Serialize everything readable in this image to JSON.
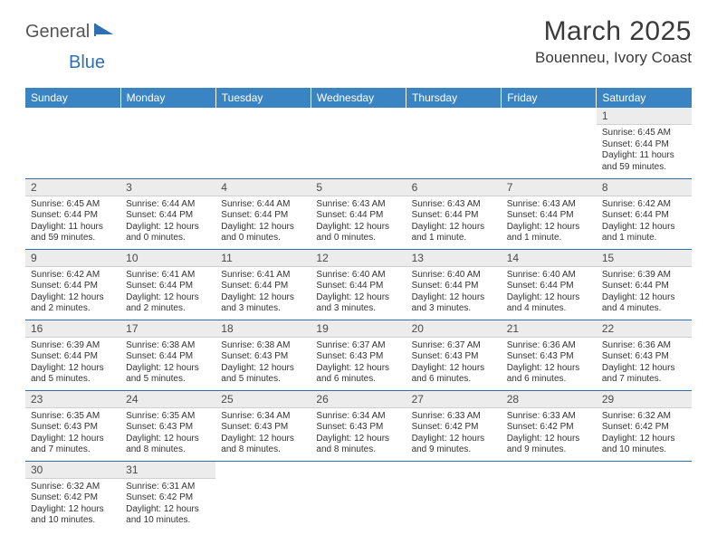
{
  "logo": {
    "part1": "General",
    "part2": "Blue"
  },
  "title": {
    "month": "March 2025",
    "location": "Bouenneu, Ivory Coast"
  },
  "colors": {
    "header_bg": "#3a84c4",
    "header_text": "#ffffff",
    "row_border": "#2e6fb5",
    "daynum_bg": "#ececec",
    "logo_blue": "#2e6fb5"
  },
  "weekdays": [
    "Sunday",
    "Monday",
    "Tuesday",
    "Wednesday",
    "Thursday",
    "Friday",
    "Saturday"
  ],
  "grid": [
    [
      {
        "n": "",
        "l1": "",
        "l2": "",
        "l3": "",
        "l4": ""
      },
      {
        "n": "",
        "l1": "",
        "l2": "",
        "l3": "",
        "l4": ""
      },
      {
        "n": "",
        "l1": "",
        "l2": "",
        "l3": "",
        "l4": ""
      },
      {
        "n": "",
        "l1": "",
        "l2": "",
        "l3": "",
        "l4": ""
      },
      {
        "n": "",
        "l1": "",
        "l2": "",
        "l3": "",
        "l4": ""
      },
      {
        "n": "",
        "l1": "",
        "l2": "",
        "l3": "",
        "l4": ""
      },
      {
        "n": "1",
        "l1": "Sunrise: 6:45 AM",
        "l2": "Sunset: 6:44 PM",
        "l3": "Daylight: 11 hours",
        "l4": "and 59 minutes."
      }
    ],
    [
      {
        "n": "2",
        "l1": "Sunrise: 6:45 AM",
        "l2": "Sunset: 6:44 PM",
        "l3": "Daylight: 11 hours",
        "l4": "and 59 minutes."
      },
      {
        "n": "3",
        "l1": "Sunrise: 6:44 AM",
        "l2": "Sunset: 6:44 PM",
        "l3": "Daylight: 12 hours",
        "l4": "and 0 minutes."
      },
      {
        "n": "4",
        "l1": "Sunrise: 6:44 AM",
        "l2": "Sunset: 6:44 PM",
        "l3": "Daylight: 12 hours",
        "l4": "and 0 minutes."
      },
      {
        "n": "5",
        "l1": "Sunrise: 6:43 AM",
        "l2": "Sunset: 6:44 PM",
        "l3": "Daylight: 12 hours",
        "l4": "and 0 minutes."
      },
      {
        "n": "6",
        "l1": "Sunrise: 6:43 AM",
        "l2": "Sunset: 6:44 PM",
        "l3": "Daylight: 12 hours",
        "l4": "and 1 minute."
      },
      {
        "n": "7",
        "l1": "Sunrise: 6:43 AM",
        "l2": "Sunset: 6:44 PM",
        "l3": "Daylight: 12 hours",
        "l4": "and 1 minute."
      },
      {
        "n": "8",
        "l1": "Sunrise: 6:42 AM",
        "l2": "Sunset: 6:44 PM",
        "l3": "Daylight: 12 hours",
        "l4": "and 1 minute."
      }
    ],
    [
      {
        "n": "9",
        "l1": "Sunrise: 6:42 AM",
        "l2": "Sunset: 6:44 PM",
        "l3": "Daylight: 12 hours",
        "l4": "and 2 minutes."
      },
      {
        "n": "10",
        "l1": "Sunrise: 6:41 AM",
        "l2": "Sunset: 6:44 PM",
        "l3": "Daylight: 12 hours",
        "l4": "and 2 minutes."
      },
      {
        "n": "11",
        "l1": "Sunrise: 6:41 AM",
        "l2": "Sunset: 6:44 PM",
        "l3": "Daylight: 12 hours",
        "l4": "and 3 minutes."
      },
      {
        "n": "12",
        "l1": "Sunrise: 6:40 AM",
        "l2": "Sunset: 6:44 PM",
        "l3": "Daylight: 12 hours",
        "l4": "and 3 minutes."
      },
      {
        "n": "13",
        "l1": "Sunrise: 6:40 AM",
        "l2": "Sunset: 6:44 PM",
        "l3": "Daylight: 12 hours",
        "l4": "and 3 minutes."
      },
      {
        "n": "14",
        "l1": "Sunrise: 6:40 AM",
        "l2": "Sunset: 6:44 PM",
        "l3": "Daylight: 12 hours",
        "l4": "and 4 minutes."
      },
      {
        "n": "15",
        "l1": "Sunrise: 6:39 AM",
        "l2": "Sunset: 6:44 PM",
        "l3": "Daylight: 12 hours",
        "l4": "and 4 minutes."
      }
    ],
    [
      {
        "n": "16",
        "l1": "Sunrise: 6:39 AM",
        "l2": "Sunset: 6:44 PM",
        "l3": "Daylight: 12 hours",
        "l4": "and 5 minutes."
      },
      {
        "n": "17",
        "l1": "Sunrise: 6:38 AM",
        "l2": "Sunset: 6:44 PM",
        "l3": "Daylight: 12 hours",
        "l4": "and 5 minutes."
      },
      {
        "n": "18",
        "l1": "Sunrise: 6:38 AM",
        "l2": "Sunset: 6:43 PM",
        "l3": "Daylight: 12 hours",
        "l4": "and 5 minutes."
      },
      {
        "n": "19",
        "l1": "Sunrise: 6:37 AM",
        "l2": "Sunset: 6:43 PM",
        "l3": "Daylight: 12 hours",
        "l4": "and 6 minutes."
      },
      {
        "n": "20",
        "l1": "Sunrise: 6:37 AM",
        "l2": "Sunset: 6:43 PM",
        "l3": "Daylight: 12 hours",
        "l4": "and 6 minutes."
      },
      {
        "n": "21",
        "l1": "Sunrise: 6:36 AM",
        "l2": "Sunset: 6:43 PM",
        "l3": "Daylight: 12 hours",
        "l4": "and 6 minutes."
      },
      {
        "n": "22",
        "l1": "Sunrise: 6:36 AM",
        "l2": "Sunset: 6:43 PM",
        "l3": "Daylight: 12 hours",
        "l4": "and 7 minutes."
      }
    ],
    [
      {
        "n": "23",
        "l1": "Sunrise: 6:35 AM",
        "l2": "Sunset: 6:43 PM",
        "l3": "Daylight: 12 hours",
        "l4": "and 7 minutes."
      },
      {
        "n": "24",
        "l1": "Sunrise: 6:35 AM",
        "l2": "Sunset: 6:43 PM",
        "l3": "Daylight: 12 hours",
        "l4": "and 8 minutes."
      },
      {
        "n": "25",
        "l1": "Sunrise: 6:34 AM",
        "l2": "Sunset: 6:43 PM",
        "l3": "Daylight: 12 hours",
        "l4": "and 8 minutes."
      },
      {
        "n": "26",
        "l1": "Sunrise: 6:34 AM",
        "l2": "Sunset: 6:43 PM",
        "l3": "Daylight: 12 hours",
        "l4": "and 8 minutes."
      },
      {
        "n": "27",
        "l1": "Sunrise: 6:33 AM",
        "l2": "Sunset: 6:42 PM",
        "l3": "Daylight: 12 hours",
        "l4": "and 9 minutes."
      },
      {
        "n": "28",
        "l1": "Sunrise: 6:33 AM",
        "l2": "Sunset: 6:42 PM",
        "l3": "Daylight: 12 hours",
        "l4": "and 9 minutes."
      },
      {
        "n": "29",
        "l1": "Sunrise: 6:32 AM",
        "l2": "Sunset: 6:42 PM",
        "l3": "Daylight: 12 hours",
        "l4": "and 10 minutes."
      }
    ],
    [
      {
        "n": "30",
        "l1": "Sunrise: 6:32 AM",
        "l2": "Sunset: 6:42 PM",
        "l3": "Daylight: 12 hours",
        "l4": "and 10 minutes."
      },
      {
        "n": "31",
        "l1": "Sunrise: 6:31 AM",
        "l2": "Sunset: 6:42 PM",
        "l3": "Daylight: 12 hours",
        "l4": "and 10 minutes."
      },
      {
        "n": "",
        "l1": "",
        "l2": "",
        "l3": "",
        "l4": ""
      },
      {
        "n": "",
        "l1": "",
        "l2": "",
        "l3": "",
        "l4": ""
      },
      {
        "n": "",
        "l1": "",
        "l2": "",
        "l3": "",
        "l4": ""
      },
      {
        "n": "",
        "l1": "",
        "l2": "",
        "l3": "",
        "l4": ""
      },
      {
        "n": "",
        "l1": "",
        "l2": "",
        "l3": "",
        "l4": ""
      }
    ]
  ]
}
